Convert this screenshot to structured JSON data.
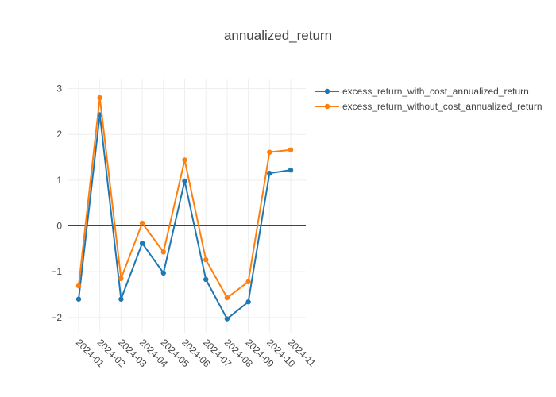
{
  "chart_data": {
    "type": "line",
    "title": "annualized_return",
    "xlabel": "",
    "ylabel": "",
    "categories": [
      "2024-01",
      "2024-02",
      "2024-03",
      "2024-04",
      "2024-05",
      "2024-06",
      "2024-07",
      "2024-08",
      "2024-09",
      "2024-10",
      "2024-11"
    ],
    "ylim": [
      -2.35,
      3.2
    ],
    "yticks": [
      -2,
      -1,
      0,
      1,
      2,
      3
    ],
    "ytick_labels": [
      "−2",
      "−1",
      "0",
      "1",
      "2",
      "3"
    ],
    "grid": true,
    "legend_position": "top-right",
    "series": [
      {
        "name": "excess_return_with_cost_annualized_return",
        "color": "#1f77b4",
        "values": [
          -1.6,
          2.43,
          -1.6,
          -0.38,
          -1.03,
          0.98,
          -1.17,
          -2.03,
          -1.66,
          1.15,
          1.22
        ]
      },
      {
        "name": "excess_return_without_cost_annualized_return",
        "color": "#ff7f0e",
        "values": [
          -1.31,
          2.8,
          -1.15,
          0.06,
          -0.57,
          1.44,
          -0.74,
          -1.57,
          -1.22,
          1.61,
          1.66
        ]
      }
    ]
  }
}
